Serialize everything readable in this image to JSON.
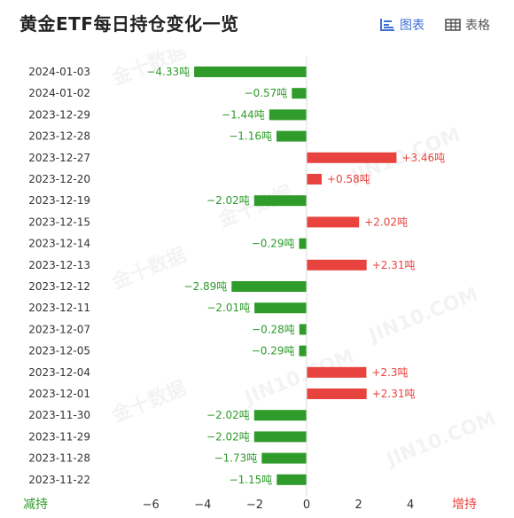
{
  "header": {
    "title": "黄金ETF每日持仓变化一览",
    "chart_toggle_label": "图表",
    "table_toggle_label": "表格"
  },
  "colors": {
    "positive": "#e8433e",
    "negative": "#2e9b2a",
    "active_toggle": "#3d6fd6"
  },
  "chart_data": {
    "type": "bar",
    "orientation": "horizontal",
    "title": "黄金ETF每日持仓变化一览",
    "unit": "吨",
    "categories": [
      "2024-01-03",
      "2024-01-02",
      "2023-12-29",
      "2023-12-28",
      "2023-12-27",
      "2023-12-20",
      "2023-12-19",
      "2023-12-15",
      "2023-12-14",
      "2023-12-13",
      "2023-12-12",
      "2023-12-11",
      "2023-12-07",
      "2023-12-05",
      "2023-12-04",
      "2023-12-01",
      "2023-11-30",
      "2023-11-29",
      "2023-11-28",
      "2023-11-22"
    ],
    "values": [
      -4.33,
      -0.57,
      -1.44,
      -1.16,
      3.46,
      0.58,
      -2.02,
      2.02,
      -0.29,
      2.31,
      -2.89,
      -2.01,
      -0.28,
      -0.29,
      2.3,
      2.31,
      -2.02,
      -2.02,
      -1.73,
      -1.15
    ],
    "value_labels": [
      "−4.33吨",
      "−0.57吨",
      "−1.44吨",
      "−1.16吨",
      "+3.46吨",
      "+0.58吨",
      "−2.02吨",
      "+2.02吨",
      "−0.29吨",
      "+2.31吨",
      "−2.89吨",
      "−2.01吨",
      "−0.28吨",
      "−0.29吨",
      "+2.3吨",
      "+2.31吨",
      "−2.02吨",
      "−2.02吨",
      "−1.73吨",
      "−1.15吨"
    ],
    "xlim": [
      -6,
      4
    ],
    "x_ticks": [
      {
        "value": -6,
        "label": "−6"
      },
      {
        "value": -4,
        "label": "−4"
      },
      {
        "value": -2,
        "label": "−2"
      },
      {
        "value": 0,
        "label": "0"
      },
      {
        "value": 2,
        "label": "2"
      },
      {
        "value": 4,
        "label": "4"
      }
    ],
    "left_label": "减持",
    "right_label": "增持",
    "grid": false
  }
}
